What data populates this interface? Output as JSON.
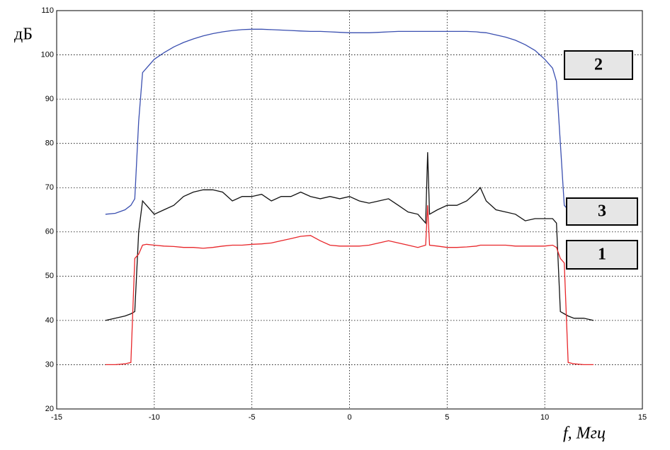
{
  "chart_data": {
    "type": "line",
    "ylabel": "дБ",
    "xlabel": "f, Мгц",
    "x": [
      -12.5,
      -12,
      -11.5,
      -11.2,
      -11,
      -10.8,
      -10.6,
      -10.4,
      -10,
      -9.5,
      -9,
      -8.5,
      -8,
      -7.5,
      -7,
      -6.5,
      -6,
      -5.5,
      -5,
      -4.5,
      -4,
      -3.5,
      -3,
      -2.5,
      -2,
      -1.5,
      -1,
      -0.5,
      0,
      0.5,
      1,
      1.5,
      2,
      2.5,
      3,
      3.5,
      3.9,
      4,
      4.1,
      4.5,
      5,
      5.5,
      6,
      6.5,
      6.7,
      7,
      7.5,
      8,
      8.5,
      9,
      9.5,
      10,
      10.4,
      10.6,
      10.8,
      11,
      11.2,
      11.5,
      12,
      12.5
    ],
    "series": [
      {
        "name": "2",
        "color": "#3a4fb0",
        "values": [
          64,
          64.2,
          65,
          66,
          67.5,
          85,
          96,
          97,
          99,
          100.5,
          101.8,
          102.8,
          103.6,
          104.3,
          104.8,
          105.2,
          105.5,
          105.7,
          105.8,
          105.8,
          105.7,
          105.6,
          105.5,
          105.4,
          105.3,
          105.3,
          105.2,
          105.1,
          105,
          105,
          105,
          105.1,
          105.2,
          105.3,
          105.3,
          105.3,
          105.3,
          105.3,
          105.3,
          105.3,
          105.3,
          105.3,
          105.3,
          105.2,
          105.1,
          105,
          104.5,
          104,
          103.3,
          102.3,
          101,
          99,
          97,
          94,
          80,
          66,
          65,
          null,
          null,
          null
        ]
      },
      {
        "name": "3",
        "color": "#111111",
        "values": [
          40,
          40.5,
          41,
          41.5,
          42,
          60,
          67,
          66,
          64,
          65,
          66,
          68,
          69,
          69.5,
          69.5,
          69,
          67,
          68,
          68,
          68.5,
          67,
          68,
          68,
          69,
          68,
          67.5,
          68,
          67.5,
          68,
          67,
          66.5,
          67,
          67.5,
          66,
          64.5,
          64,
          62,
          78,
          64,
          65,
          66,
          66,
          67,
          69,
          70,
          67,
          65,
          64.5,
          64,
          62.5,
          63,
          63,
          63,
          62,
          42,
          41.5,
          41,
          40.5,
          40.5,
          40
        ]
      },
      {
        "name": "1",
        "color": "#e8262a",
        "values": [
          30,
          30,
          30.2,
          30.5,
          54,
          55,
          57,
          57.2,
          57,
          56.8,
          56.7,
          56.5,
          56.5,
          56.3,
          56.5,
          56.8,
          57,
          57,
          57.2,
          57.3,
          57.5,
          58,
          58.5,
          59,
          59.2,
          58,
          57,
          56.8,
          56.8,
          56.8,
          57,
          57.5,
          58,
          57.5,
          57,
          56.5,
          57,
          66,
          57,
          56.8,
          56.5,
          56.5,
          56.6,
          56.8,
          57,
          57,
          57,
          57,
          56.8,
          56.8,
          56.8,
          56.8,
          57,
          56.5,
          54,
          53,
          30.5,
          30.2,
          30,
          30
        ]
      }
    ],
    "xlim": [
      -15,
      15
    ],
    "ylim": [
      20,
      110
    ],
    "xticks": [
      -15,
      -10,
      -5,
      0,
      5,
      10,
      15
    ],
    "yticks": [
      20,
      30,
      40,
      50,
      60,
      70,
      80,
      90,
      100,
      110
    ],
    "grid": true
  }
}
